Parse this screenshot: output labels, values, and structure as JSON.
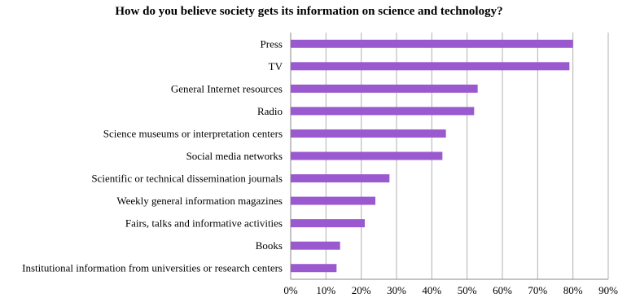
{
  "chart_data": {
    "type": "bar",
    "orientation": "horizontal",
    "title": "How do you believe society gets its information on science and technology?",
    "categories": [
      "Press",
      "TV",
      "General Internet resources",
      "Radio",
      "Science museums or interpretation centers",
      "Social media networks",
      "Scientific or technical dissemination journals",
      "Weekly general information magazines",
      "Fairs, talks and informative activities",
      "Books",
      "Institutional information from universities or research centers"
    ],
    "values": [
      80,
      79,
      53,
      52,
      44,
      43,
      28,
      24,
      21,
      14,
      13
    ],
    "xlim": [
      0,
      90
    ],
    "xticks": [
      0,
      10,
      20,
      30,
      40,
      50,
      60,
      70,
      80,
      90
    ],
    "xtick_labels": [
      "0%",
      "10%",
      "20%",
      "30%",
      "40%",
      "50%",
      "60%",
      "70%",
      "80%",
      "90%"
    ],
    "xlabel": "",
    "ylabel": "",
    "grid": true,
    "legend": "none",
    "bar_color": "#9b59d0",
    "grid_color": "#b0b0b0"
  }
}
